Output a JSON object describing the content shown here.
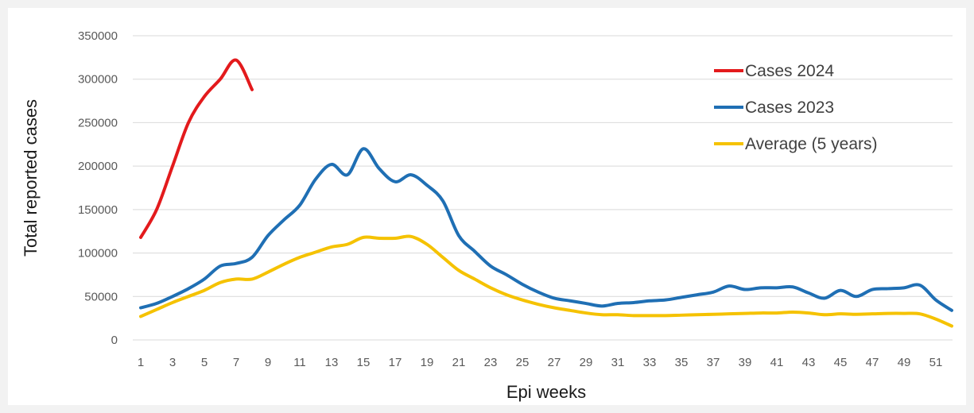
{
  "chart_data": {
    "type": "line",
    "title": "",
    "xlabel": "Epi weeks",
    "ylabel": "Total reported cases",
    "ylim": [
      0,
      350000
    ],
    "yticks": [
      0,
      50000,
      100000,
      150000,
      200000,
      250000,
      300000,
      350000
    ],
    "xticks": [
      1,
      3,
      5,
      7,
      9,
      11,
      13,
      15,
      17,
      19,
      21,
      23,
      25,
      27,
      29,
      31,
      33,
      35,
      37,
      39,
      41,
      43,
      45,
      47,
      49,
      51
    ],
    "xlim": [
      1,
      52
    ],
    "grid": true,
    "legend_position": "top-right",
    "series": [
      {
        "name": "Cases 2024",
        "color": "#e31a1c",
        "x": [
          1,
          2,
          3,
          4,
          5,
          6,
          7,
          8
        ],
        "values": [
          118000,
          150000,
          200000,
          250000,
          280000,
          300000,
          322000,
          288000
        ]
      },
      {
        "name": "Cases 2023",
        "color": "#1f6fb4",
        "x": [
          1,
          2,
          3,
          4,
          5,
          6,
          7,
          8,
          9,
          10,
          11,
          12,
          13,
          14,
          15,
          16,
          17,
          18,
          19,
          20,
          21,
          22,
          23,
          24,
          25,
          26,
          27,
          28,
          29,
          30,
          31,
          32,
          33,
          34,
          35,
          36,
          37,
          38,
          39,
          40,
          41,
          42,
          43,
          44,
          45,
          46,
          47,
          48,
          49,
          50,
          51,
          52
        ],
        "values": [
          37000,
          42000,
          50000,
          59000,
          70000,
          85000,
          88000,
          95000,
          120000,
          138000,
          155000,
          185000,
          202000,
          190000,
          220000,
          197000,
          182000,
          190000,
          178000,
          160000,
          120000,
          102000,
          85000,
          75000,
          64000,
          55000,
          48000,
          45000,
          42000,
          39000,
          42000,
          43000,
          45000,
          46000,
          49000,
          52000,
          55000,
          62000,
          58000,
          60000,
          60000,
          61000,
          54000,
          48000,
          57000,
          50000,
          58000,
          59000,
          60000,
          63000,
          46000,
          34000
        ]
      },
      {
        "name": "Average (5 years)",
        "color": "#f5c200",
        "x": [
          1,
          2,
          3,
          4,
          5,
          6,
          7,
          8,
          9,
          10,
          11,
          12,
          13,
          14,
          15,
          16,
          17,
          18,
          19,
          20,
          21,
          22,
          23,
          24,
          25,
          26,
          27,
          28,
          29,
          30,
          31,
          32,
          33,
          34,
          35,
          36,
          37,
          38,
          39,
          40,
          41,
          42,
          43,
          44,
          45,
          46,
          47,
          48,
          49,
          50,
          51,
          52
        ],
        "values": [
          27000,
          35000,
          43000,
          50000,
          57000,
          66000,
          70000,
          70000,
          78000,
          87000,
          95000,
          101000,
          107000,
          110000,
          118000,
          117000,
          117000,
          119000,
          110000,
          95000,
          80000,
          70000,
          60000,
          52000,
          46000,
          41000,
          37000,
          34000,
          31000,
          29000,
          29000,
          28000,
          28000,
          28000,
          28500,
          29000,
          29500,
          30000,
          30500,
          31000,
          31000,
          32000,
          31000,
          29000,
          30000,
          29500,
          30000,
          30500,
          30500,
          30000,
          24000,
          16000
        ]
      }
    ]
  }
}
